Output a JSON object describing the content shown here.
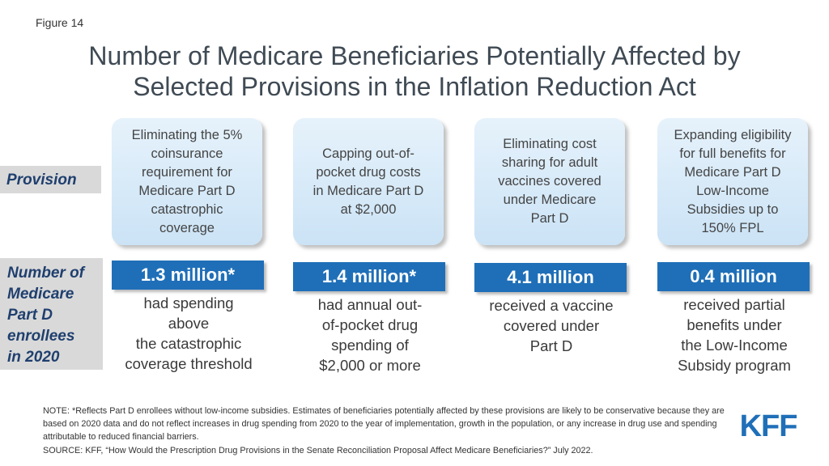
{
  "figure_label": "Figure 14",
  "title_line1": "Number of Medicare Beneficiaries Potentially Affected by",
  "title_line2": "Selected Provisions in the Inflation Reduction Act",
  "row_labels": {
    "provision": "Provision",
    "number_lines": [
      "Number of",
      "Medicare",
      "Part D",
      "enrollees",
      "in 2020"
    ]
  },
  "columns": [
    {
      "provision_lines": [
        "Eliminating the 5%",
        "coinsurance",
        "requirement for",
        "Medicare Part D",
        "catastrophic",
        "coverage"
      ],
      "value": "1.3 million*",
      "desc_lines": [
        "had spending",
        "above",
        "the catastrophic",
        "coverage threshold"
      ]
    },
    {
      "provision_lines": [
        "Capping out-of-",
        "pocket drug costs",
        "in Medicare Part D",
        "at $2,000"
      ],
      "value": "1.4 million*",
      "desc_lines": [
        "had annual out-",
        "of-pocket drug",
        "spending of",
        "$2,000 or more"
      ]
    },
    {
      "provision_lines": [
        "Eliminating cost",
        "sharing for adult",
        "vaccines covered",
        "under Medicare",
        "Part D"
      ],
      "value": "4.1 million",
      "desc_lines": [
        "received a vaccine",
        "covered under",
        "Part D"
      ]
    },
    {
      "provision_lines": [
        "Expanding eligibility",
        "for full benefits for",
        "Medicare Part D",
        "Low-Income",
        "Subsidies up to",
        "150% FPL"
      ],
      "value": "0.4 million",
      "desc_lines": [
        "received partial",
        "benefits under",
        "the Low-Income",
        "Subsidy program"
      ]
    }
  ],
  "note": "NOTE: *Reflects Part D enrollees without low-income subsidies. Estimates of beneficiaries potentially affected by these provisions are likely to be conservative because they are based on 2020 data and do not reflect increases in drug spending from 2020 to the year of implementation, growth in the population, or any increase in drug use and spending attributable to reduced financial barriers.",
  "source": "SOURCE: KFF, “How Would the Prescription Drug Provisions in the Senate Reconciliation Proposal Affect Medicare Beneficiaries?” July 2022.",
  "logo": {
    "text": "KFF",
    "color": "#1f6fb8"
  }
}
